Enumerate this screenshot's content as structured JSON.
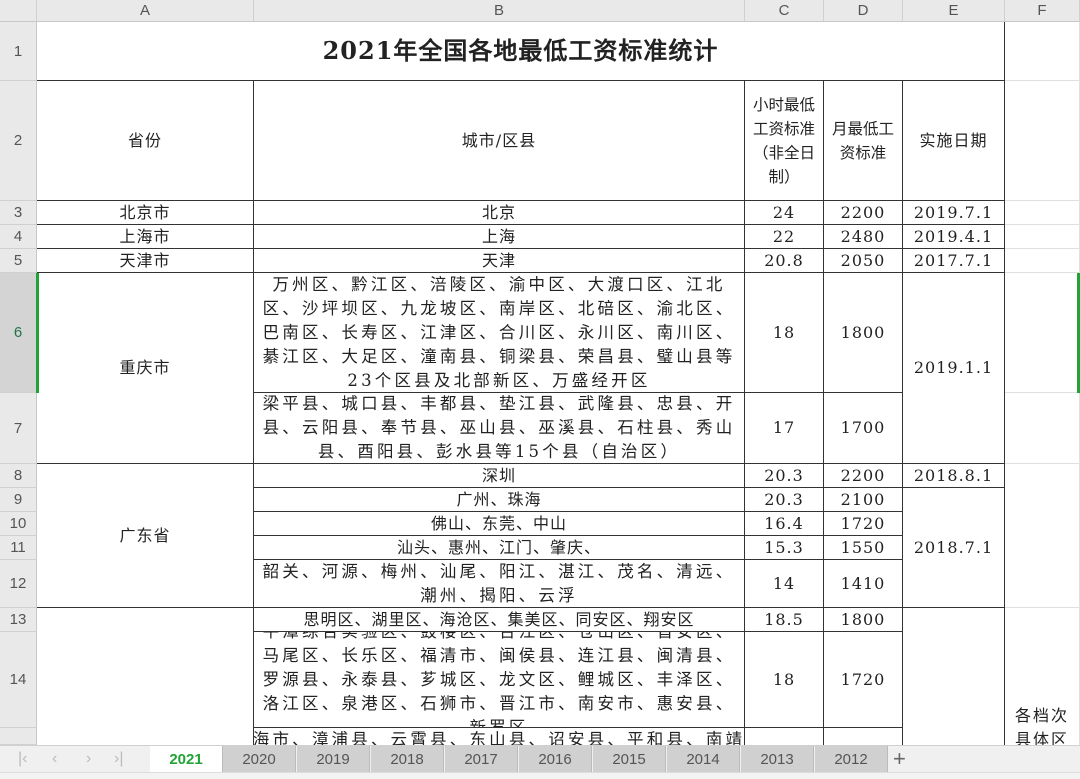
{
  "columns": [
    "A",
    "B",
    "C",
    "D",
    "E",
    "F"
  ],
  "rows": [
    "1",
    "2",
    "3",
    "4",
    "5",
    "6",
    "7",
    "8",
    "9",
    "10",
    "11",
    "12",
    "13",
    "14"
  ],
  "selected_row": "6",
  "title": "2021年全国各地最低工资标准统计",
  "headers": {
    "province": "省份",
    "city": "城市/区县",
    "hourly": "小时最低工资标准（非全日制）",
    "monthly": "月最低工资标准",
    "date": "实施日期"
  },
  "records": [
    {
      "province": "北京市",
      "city": "北京",
      "hourly": "24",
      "monthly": "2200",
      "date": "2019.7.1"
    },
    {
      "province": "上海市",
      "city": "上海",
      "hourly": "22",
      "monthly": "2480",
      "date": "2019.4.1"
    },
    {
      "province": "天津市",
      "city": "天津",
      "hourly": "20.8",
      "monthly": "2050",
      "date": "2017.7.1"
    },
    {
      "province": "重庆市",
      "city": "万州区、黔江区、涪陵区、渝中区、大渡口区、江北区、沙坪坝区、九龙坡区、南岸区、北碚区、渝北区、巴南区、长寿区、江津区、合川区、永川区、南川区、綦江区、大足区、潼南县、铜梁县、荣昌县、璧山县等23个区县及北部新区、万盛经开区",
      "hourly": "18",
      "monthly": "1800",
      "date": "2019.1.1"
    },
    {
      "city": "梁平县、城口县、丰都县、垫江县、武隆县、忠县、开县、云阳县、奉节县、巫山县、巫溪县、石柱县、秀山县、酉阳县、彭水县等15个县（自治区）",
      "hourly": "17",
      "monthly": "1700"
    },
    {
      "province": "广东省",
      "city": "深圳",
      "hourly": "20.3",
      "monthly": "2200",
      "date": "2018.8.1"
    },
    {
      "city": "广州、珠海",
      "hourly": "20.3",
      "monthly": "2100",
      "date": "2018.7.1"
    },
    {
      "city": "佛山、东莞、中山",
      "hourly": "16.4",
      "monthly": "1720"
    },
    {
      "city": "汕头、惠州、江门、肇庆、",
      "hourly": "15.3",
      "monthly": "1550"
    },
    {
      "city": "韶关、河源、梅州、汕尾、阳江、湛江、茂名、清远、潮州、揭阳、云浮",
      "hourly": "14",
      "monthly": "1410"
    },
    {
      "city": "思明区、湖里区、海沧区、集美区、同安区、翔安区",
      "hourly": "18.5",
      "monthly": "1800"
    },
    {
      "city": "平潭综合实验区、鼓楼区、台江区、仓山区、晋安区、马尾区、长乐区、福清市、闽侯县、连江县、闽清县、罗源县、永泰县、芗城区、龙文区、鲤城区、丰泽区、洛江区、泉港区、石狮市、晋江市、南安市、惠安县、新罗区",
      "hourly": "18",
      "monthly": "1720"
    },
    {
      "city": "龙海市、漳浦县、云霄县、东山县、诏安县、平和县、南靖县"
    }
  ],
  "note": "各档次具体区",
  "sheet_tabs": [
    "2021",
    "2020",
    "2019",
    "2018",
    "2017",
    "2016",
    "2015",
    "2014",
    "2013",
    "2012"
  ],
  "active_tab": "2021",
  "accent": "#21a336"
}
